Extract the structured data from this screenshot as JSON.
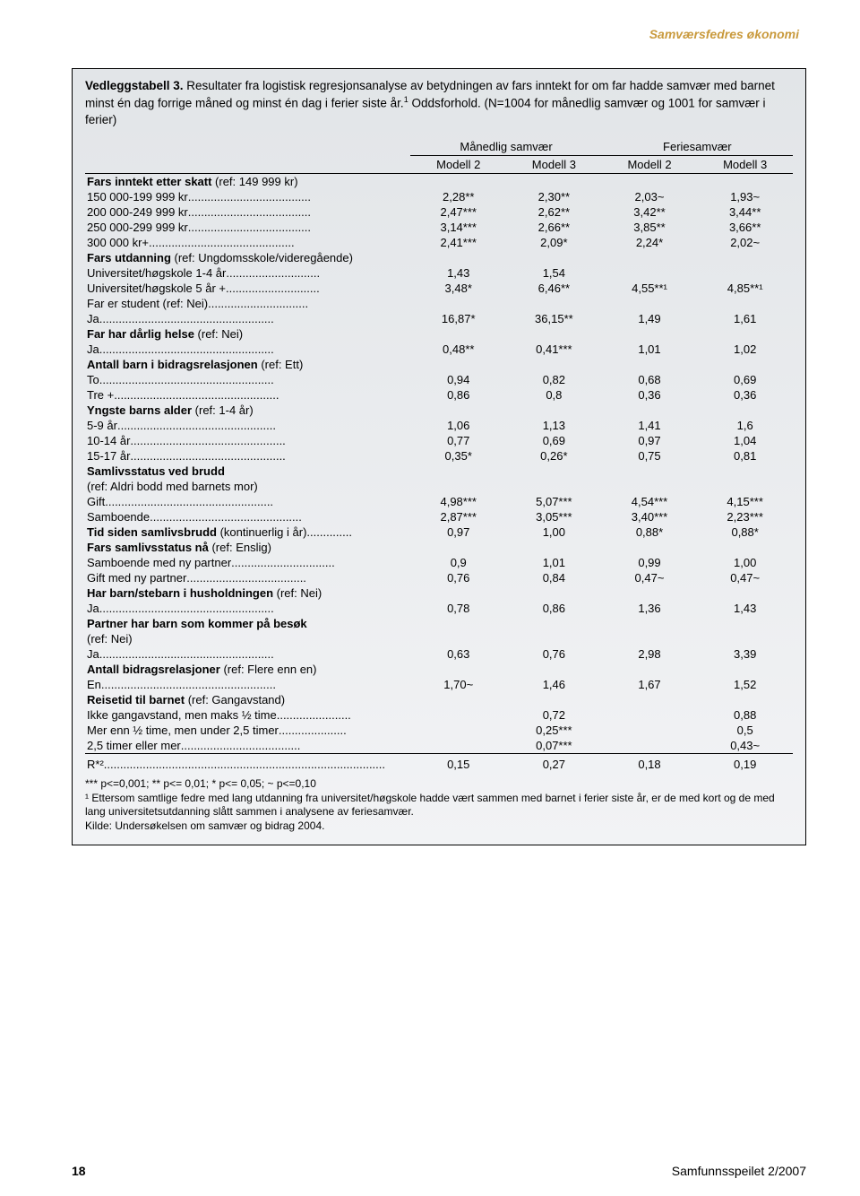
{
  "header": {
    "section_label": "Samværsfedres økonomi"
  },
  "table": {
    "title_strong": "Vedleggstabell 3.",
    "title_rest": " Resultater fra logistisk regresjonsanalyse av betydningen av fars inntekt for om far hadde samvær med barnet minst én dag forrige måned og minst én dag i ferier siste år.",
    "title_sup": "1",
    "title_tail": " Oddsforhold. (N=1004 for månedlig samvær og 1001 for samvær i ferier)",
    "col_groups": [
      "Månedlig samvær",
      "Feriesamvær"
    ],
    "col_models": [
      "Modell 2",
      "Modell 3",
      "Modell 2",
      "Modell 3"
    ],
    "rows": [
      {
        "type": "section",
        "label": "Fars inntekt etter skatt",
        "ref": "(ref: 149 999 kr)"
      },
      {
        "label": "150 000-199 999 kr",
        "dots": true,
        "v": [
          "2,28**",
          "2,30**",
          "2,03~",
          "1,93~"
        ]
      },
      {
        "label": "200 000-249 999 kr",
        "dots": true,
        "v": [
          "2,47***",
          "2,62**",
          "3,42**",
          "3,44**"
        ]
      },
      {
        "label": "250 000-299 999 kr",
        "dots": true,
        "v": [
          "3,14***",
          "2,66**",
          "3,85**",
          "3,66**"
        ]
      },
      {
        "label": "300 000 kr+",
        "dots": true,
        "v": [
          "2,41***",
          "2,09*",
          "2,24*",
          "2,02~"
        ]
      },
      {
        "type": "section",
        "label": "Fars utdanning",
        "ref": "(ref: Ungdomsskole/videregående)"
      },
      {
        "label": "Universitet/høgskole 1-4 år",
        "dots": true,
        "v": [
          "1,43",
          "1,54",
          "",
          ""
        ]
      },
      {
        "label": "Universitet/høgskole 5 år +",
        "dots": true,
        "v": [
          "3,48*",
          "6,46**",
          "4,55**¹",
          "4,85**¹"
        ]
      },
      {
        "label_html": "Far er student <span class=\"ref\">(ref: Nei)</span>",
        "dots": true,
        "v": [
          "",
          "",
          "",
          ""
        ]
      },
      {
        "label": "Ja",
        "dots": true,
        "v": [
          "16,87*",
          "36,15**",
          "1,49",
          "1,61"
        ]
      },
      {
        "type": "section",
        "label": "Far har dårlig helse",
        "ref": "(ref: Nei)"
      },
      {
        "label": "Ja",
        "dots": true,
        "v": [
          "0,48**",
          "0,41***",
          "1,01",
          "1,02"
        ]
      },
      {
        "type": "section",
        "label": "Antall barn i bidragsrelasjonen",
        "ref": "(ref: Ett)"
      },
      {
        "label": "To",
        "dots": true,
        "v": [
          "0,94",
          "0,82",
          "0,68",
          "0,69"
        ]
      },
      {
        "label": "Tre +",
        "dots": true,
        "v": [
          "0,86",
          "0,8",
          "0,36",
          "0,36"
        ]
      },
      {
        "type": "section",
        "label": "Yngste barns alder",
        "ref": "(ref: 1-4 år)"
      },
      {
        "label": " 5-9 år",
        "dots": true,
        "v": [
          "1,06",
          "1,13",
          "1,41",
          "1,6"
        ]
      },
      {
        "label": "10-14 år",
        "dots": true,
        "v": [
          "0,77",
          "0,69",
          "0,97",
          "1,04"
        ]
      },
      {
        "label": "15-17 år",
        "dots": true,
        "v": [
          "0,35*",
          "0,26*",
          "0,75",
          "0,81"
        ]
      },
      {
        "type": "section",
        "label": "Samlivsstatus ved brudd",
        "ref": ""
      },
      {
        "label": "(ref: Aldri bodd med barnets mor)",
        "v": [
          "",
          "",
          "",
          ""
        ]
      },
      {
        "label": "Gift",
        "dots": true,
        "v": [
          "4,98***",
          "5,07***",
          "4,54***",
          "4,15***"
        ]
      },
      {
        "label": "Samboende",
        "dots": true,
        "v": [
          "2,87***",
          "3,05***",
          "3,40***",
          "2,23***"
        ]
      },
      {
        "label_html": "<span class=\"section-inline\">Tid siden samlivsbrudd</span> (kontinuerlig i år)",
        "dots": true,
        "v": [
          "0,97",
          "1,00",
          "0,88*",
          "0,88*"
        ]
      },
      {
        "type": "section",
        "label": "Fars samlivsstatus nå",
        "ref": "(ref: Enslig)"
      },
      {
        "label": "Samboende med ny partner",
        "dots": true,
        "v": [
          "0,9",
          "1,01",
          "0,99",
          "1,00"
        ]
      },
      {
        "label": "Gift med ny partner",
        "dots": true,
        "v": [
          "0,76",
          "0,84",
          "0,47~",
          "0,47~"
        ]
      },
      {
        "type": "section",
        "label": "Har barn/stebarn i husholdningen",
        "ref": "(ref: Nei)"
      },
      {
        "label": "Ja",
        "dots": true,
        "v": [
          "0,78",
          "0,86",
          "1,36",
          "1,43"
        ]
      },
      {
        "type": "section",
        "label": "Partner har barn som kommer på besøk",
        "ref": ""
      },
      {
        "label": " (ref: Nei)",
        "v": [
          "",
          "",
          "",
          ""
        ]
      },
      {
        "label": "Ja",
        "dots": true,
        "v": [
          "0,63",
          "0,76",
          "2,98",
          "3,39"
        ]
      },
      {
        "type": "section",
        "label": "Antall bidragsrelasjoner",
        "ref": "(ref: Flere enn en)"
      },
      {
        "label": "En",
        "dots": true,
        "v": [
          "1,70~",
          "1,46",
          "1,67",
          "1,52"
        ]
      },
      {
        "type": "section",
        "label": "Reisetid til barnet",
        "ref": "(ref: Gangavstand)"
      },
      {
        "label": "Ikke gangavstand, men maks ½ time",
        "dots": true,
        "v": [
          "",
          "0,72",
          "",
          "0,88"
        ]
      },
      {
        "label": "Mer enn ½ time, men under 2,5 timer",
        "dots": true,
        "v": [
          "",
          "0,25***",
          "",
          "0,5"
        ]
      },
      {
        "label": "2,5 timer eller mer",
        "dots": true,
        "v": [
          "",
          "0,07***",
          "",
          "0,43~"
        ]
      }
    ],
    "r2": {
      "label": "R*²",
      "dots": true,
      "v": [
        "0,15",
        "0,27",
        "0,18",
        "0,19"
      ]
    },
    "footnotes": [
      "*** p<=0,001; ** p<= 0,01; * p<= 0,05; ~ p<=0,10",
      "¹ Ettersom samtlige fedre med lang utdanning fra universitet/høgskole hadde vært sammen med barnet i ferier siste år, er de med kort og de med lang universitetsutdanning slått sammen i analysene av feriesamvær.",
      "Kilde: Undersøkelsen om samvær og bidrag 2004."
    ]
  },
  "footer": {
    "page_number": "18",
    "journal": "Samfunnsspeilet 2/2007"
  }
}
